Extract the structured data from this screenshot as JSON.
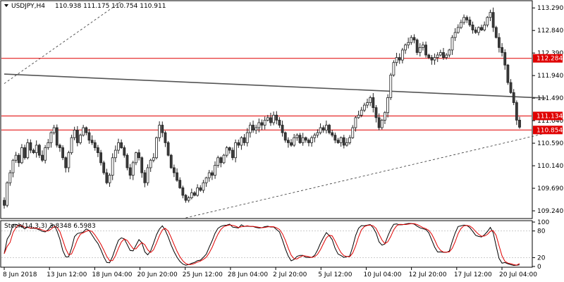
{
  "chart_data": {
    "type": "candlestick",
    "symbol_label": "USDJPY,H4",
    "ohlc_label": "110.938 111.175 110.754 110.911",
    "price_axis": {
      "range": [
        109.1,
        113.42
      ],
      "ticks": [
        "113.290",
        "112.840",
        "112.390",
        "111.940",
        "111.490",
        "111.040",
        "110.590",
        "110.140",
        "109.690",
        "109.240"
      ]
    },
    "horizontal_levels": [
      {
        "label": "112.284",
        "value": 112.284,
        "color": "#e00000"
      },
      {
        "label": "111.134",
        "value": 111.134,
        "color": "#e00000"
      },
      {
        "label": "110.854",
        "value": 110.854,
        "color": "#e00000"
      }
    ],
    "time_axis_labels": [
      "8 Jun 2018",
      "13 Jun 12:00",
      "18 Jun 04:00",
      "20 Jun 20:00",
      "25 Jun 12:00",
      "28 Jun 04:00",
      "2 Jul 20:00",
      "5 Jul 12:00",
      "10 Jul 04:00",
      "12 Jul 20:00",
      "17 Jul 12:00",
      "20 Jul 04:00"
    ],
    "trend_lines": [
      {
        "style": "dashed",
        "from": [
          0,
          111.78
        ],
        "to": [
          40,
          113.42
        ]
      },
      {
        "style": "solid",
        "from": [
          0,
          111.97
        ],
        "to": [
          185,
          111.49
        ]
      },
      {
        "style": "dashed",
        "from": [
          62,
          109.1
        ],
        "to": [
          185,
          110.79
        ]
      }
    ],
    "candles_close": [
      109.35,
      109.8,
      110.0,
      110.25,
      110.35,
      110.2,
      110.5,
      110.3,
      110.6,
      110.45,
      110.4,
      110.55,
      110.35,
      110.25,
      110.5,
      110.6,
      110.8,
      110.9,
      110.55,
      110.5,
      110.3,
      110.1,
      110.4,
      110.7,
      110.85,
      110.6,
      110.75,
      110.9,
      110.8,
      110.65,
      110.6,
      110.5,
      110.4,
      110.2,
      110.0,
      109.8,
      109.95,
      110.3,
      110.45,
      110.6,
      110.5,
      110.35,
      110.1,
      109.95,
      110.2,
      110.4,
      110.3,
      110.0,
      109.8,
      110.1,
      110.25,
      110.3,
      110.7,
      110.95,
      110.8,
      110.6,
      110.35,
      110.1,
      110.0,
      109.85,
      109.7,
      109.55,
      109.45,
      109.5,
      109.6,
      109.55,
      109.7,
      109.65,
      109.8,
      109.9,
      110.0,
      109.95,
      110.15,
      110.3,
      110.2,
      110.35,
      110.5,
      110.45,
      110.3,
      110.6,
      110.55,
      110.7,
      110.6,
      110.8,
      110.95,
      110.85,
      110.9,
      111.0,
      110.95,
      111.05,
      111.1,
      111.0,
      111.15,
      111.05,
      110.95,
      110.8,
      110.65,
      110.6,
      110.55,
      110.7,
      110.75,
      110.6,
      110.7,
      110.65,
      110.6,
      110.7,
      110.75,
      110.8,
      110.9,
      110.85,
      110.95,
      110.8,
      110.75,
      110.65,
      110.6,
      110.7,
      110.55,
      110.6,
      110.7,
      110.9,
      111.1,
      111.15,
      111.25,
      111.35,
      111.4,
      111.5,
      111.3,
      111.1,
      110.9,
      111.05,
      111.2,
      111.5,
      111.95,
      112.2,
      112.3,
      112.25,
      112.45,
      112.55,
      112.6,
      112.7,
      112.65,
      112.4,
      112.5,
      112.55,
      112.35,
      112.3,
      112.25,
      112.3,
      112.35,
      112.4,
      112.3,
      112.35,
      112.45,
      112.7,
      112.8,
      112.9,
      113.0,
      113.1,
      113.05,
      112.95,
      112.85,
      112.8,
      112.9,
      112.85,
      112.95,
      113.1,
      113.2,
      112.9,
      112.7,
      112.5,
      112.4,
      112.15,
      111.8,
      111.6,
      111.4,
      111.05,
      110.91
    ],
    "stochastic": {
      "label": "Stoch(14,3,3) 3.8348 6.5983",
      "main_value": 3.8348,
      "signal_value": 6.5983,
      "range": [
        0,
        100
      ],
      "ticks": [
        "100",
        "80",
        "20",
        "0"
      ],
      "levels": [
        80,
        20
      ]
    }
  }
}
